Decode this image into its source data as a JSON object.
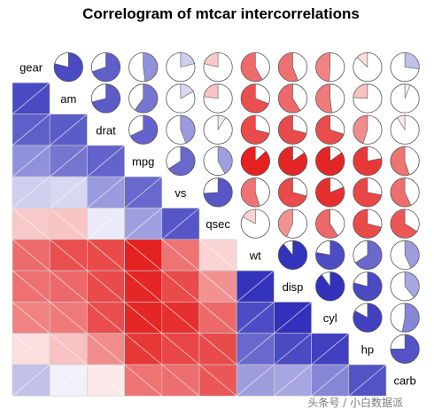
{
  "chart_data": {
    "type": "heatmap",
    "title": "Correlogram of mtcar intercorrelations",
    "variables": [
      "gear",
      "am",
      "drat",
      "mpg",
      "vs",
      "qsec",
      "wt",
      "disp",
      "cyl",
      "hp",
      "carb"
    ],
    "matrix": [
      [
        1.0,
        0.79,
        0.7,
        0.48,
        0.21,
        -0.21,
        -0.58,
        -0.56,
        -0.49,
        -0.13,
        0.27
      ],
      [
        0.79,
        1.0,
        0.71,
        0.6,
        0.17,
        -0.23,
        -0.69,
        -0.59,
        -0.52,
        -0.24,
        0.06
      ],
      [
        0.7,
        0.71,
        1.0,
        0.68,
        0.44,
        0.09,
        -0.71,
        -0.71,
        -0.7,
        -0.45,
        -0.09
      ],
      [
        0.48,
        0.6,
        0.68,
        1.0,
        0.66,
        0.42,
        -0.87,
        -0.85,
        -0.85,
        -0.78,
        -0.55
      ],
      [
        0.21,
        0.17,
        0.44,
        0.66,
        1.0,
        0.74,
        -0.55,
        -0.71,
        -0.81,
        -0.72,
        -0.57
      ],
      [
        -0.21,
        -0.23,
        0.09,
        0.42,
        0.74,
        1.0,
        -0.17,
        -0.43,
        -0.59,
        -0.71,
        -0.66
      ],
      [
        -0.58,
        -0.69,
        -0.71,
        -0.87,
        -0.55,
        -0.17,
        1.0,
        0.89,
        0.78,
        0.66,
        0.43
      ],
      [
        -0.56,
        -0.59,
        -0.71,
        -0.85,
        -0.71,
        -0.43,
        0.89,
        1.0,
        0.9,
        0.79,
        0.39
      ],
      [
        -0.49,
        -0.52,
        -0.7,
        -0.85,
        -0.81,
        -0.59,
        0.78,
        0.9,
        1.0,
        0.83,
        0.53
      ],
      [
        -0.13,
        -0.24,
        -0.45,
        -0.78,
        -0.72,
        -0.71,
        0.66,
        0.79,
        0.83,
        1.0,
        0.75
      ],
      [
        0.27,
        0.06,
        -0.09,
        -0.55,
        -0.57,
        -0.66,
        0.43,
        0.39,
        0.53,
        0.75,
        1.0
      ]
    ],
    "lower_panel": "shade",
    "upper_panel": "pie",
    "diagonal_panel": "variable name",
    "colors": {
      "positive": "#1a1ab3",
      "negative": "#e00000",
      "neutral": "#ffffff"
    },
    "legend": "none",
    "grid": false
  },
  "watermark": "头条号 / 小白数据派"
}
